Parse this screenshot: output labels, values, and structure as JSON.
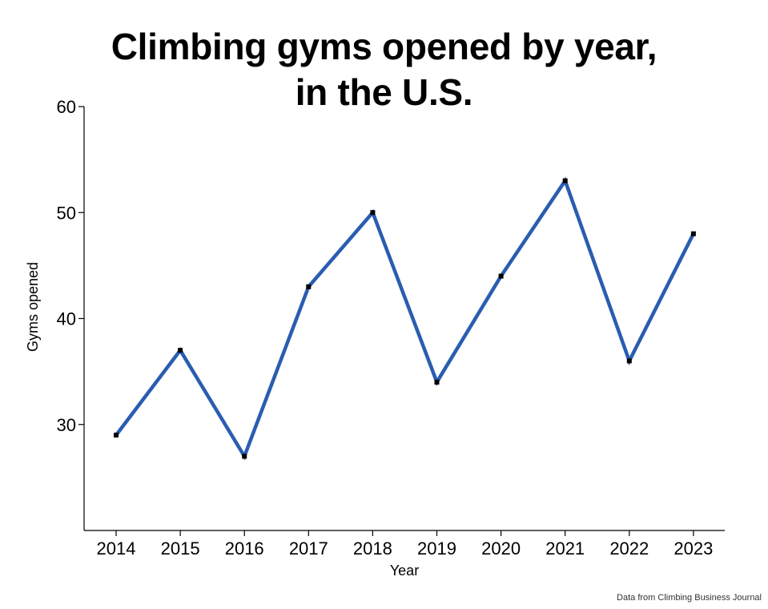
{
  "chart_data": {
    "type": "line",
    "title_line1": "Climbing gyms opened by year,",
    "title_line2": "in the U.S.",
    "xlabel": "Year",
    "ylabel": "Gyms opened",
    "source": "Data from Climbing Business Journal",
    "x": [
      "2014",
      "2015",
      "2016",
      "2017",
      "2018",
      "2019",
      "2020",
      "2021",
      "2022",
      "2023"
    ],
    "values": [
      29,
      37,
      27,
      43,
      50,
      34,
      44,
      53,
      36,
      48
    ],
    "ylim": [
      20,
      60
    ],
    "yticks": [
      30,
      40,
      50,
      60
    ],
    "grid": false,
    "line_color": "#2a5db0",
    "marker_color": "#000000",
    "axis_color": "#000000"
  }
}
